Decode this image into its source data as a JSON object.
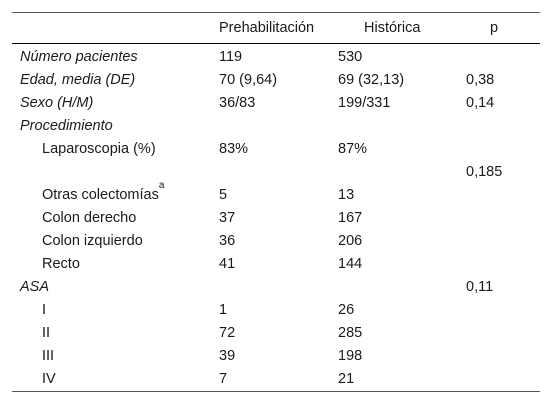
{
  "headers": [
    "",
    "Prehabilitación",
    "Histórica",
    "p"
  ],
  "rows": [
    {
      "label": "Número pacientes",
      "italic": true,
      "indent": false,
      "pre": "119",
      "hist": "530",
      "p": ""
    },
    {
      "label": "Edad, media (DE)",
      "italic": true,
      "indent": false,
      "pre": "70 (9,64)",
      "hist": "69 (32,13)",
      "p": "0,38"
    },
    {
      "label": "Sexo (H/M)",
      "italic": true,
      "indent": false,
      "pre": "36/83",
      "hist": "199/331",
      "p": "0,14"
    },
    {
      "label": "Procedimiento",
      "italic": true,
      "indent": false,
      "pre": "",
      "hist": "",
      "p": ""
    },
    {
      "label": "Laparoscopia (%)",
      "italic": false,
      "indent": true,
      "pre": "83%",
      "hist": "87%",
      "p": ""
    },
    {
      "label": "",
      "italic": false,
      "indent": true,
      "pre": "",
      "hist": "",
      "p": "0,185"
    },
    {
      "label": "Otras colectomías",
      "sup": "a",
      "italic": false,
      "indent": true,
      "pre": "5",
      "hist": "13",
      "p": ""
    },
    {
      "label": "Colon derecho",
      "italic": false,
      "indent": true,
      "pre": "37",
      "hist": "167",
      "p": ""
    },
    {
      "label": "Colon izquierdo",
      "italic": false,
      "indent": true,
      "pre": "36",
      "hist": "206",
      "p": ""
    },
    {
      "label": "Recto",
      "italic": false,
      "indent": true,
      "pre": "41",
      "hist": "144",
      "p": ""
    },
    {
      "label": "ASA",
      "italic": true,
      "indent": false,
      "pre": "",
      "hist": "",
      "p": "0,11"
    },
    {
      "label": "I",
      "italic": false,
      "indent": true,
      "pre": "1",
      "hist": "26",
      "p": ""
    },
    {
      "label": "II",
      "italic": false,
      "indent": true,
      "pre": "72",
      "hist": "285",
      "p": ""
    },
    {
      "label": "III",
      "italic": false,
      "indent": true,
      "pre": "39",
      "hist": "198",
      "p": ""
    },
    {
      "label": "IV",
      "italic": false,
      "indent": true,
      "pre": "7",
      "hist": "21",
      "p": ""
    }
  ]
}
